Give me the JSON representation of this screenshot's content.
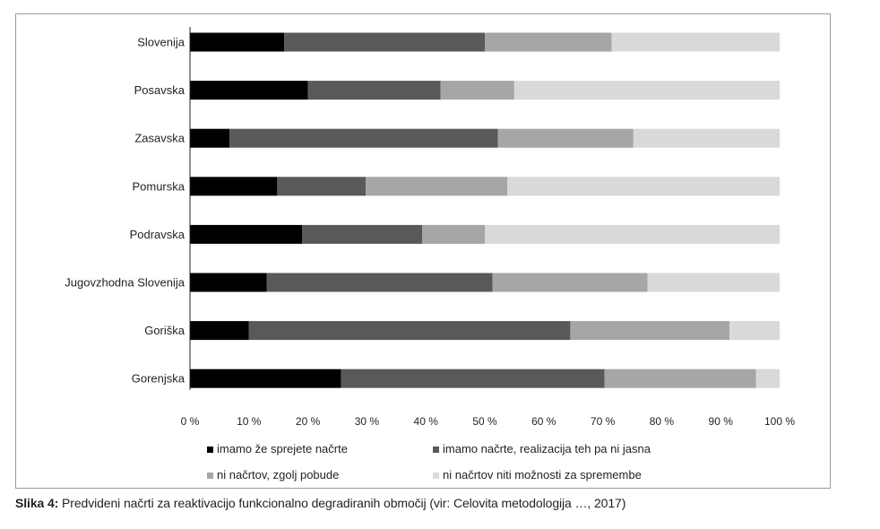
{
  "caption": {
    "label": "Slika 4:",
    "text": " Predvideni načrti za reaktivacijo funkcionalno degradiranih območij (vir: Celovita metodologija …, 2017)"
  },
  "chart_data": {
    "type": "bar",
    "orientation": "horizontal",
    "stacked": "percent",
    "categories": [
      "Slovenija",
      "Posavska",
      "Zasavska",
      "Pomurska",
      "Podravska",
      "Jugovzhodna Slovenija",
      "Goriška",
      "Gorenjska"
    ],
    "series": [
      {
        "name": "imamo že sprejete načrte",
        "color": "#000000",
        "values": [
          16,
          20,
          6.7,
          14.8,
          19,
          13,
          10,
          25.6
        ]
      },
      {
        "name": "imamo načrte, realizacija teh pa ni jasna",
        "color": "#595959",
        "values": [
          34,
          22.5,
          45.5,
          15,
          20.4,
          38.3,
          54.5,
          44.7
        ]
      },
      {
        "name": "ni načrtov, zgolj pobude",
        "color": "#a6a6a6",
        "values": [
          21.5,
          12.5,
          23,
          24,
          10.6,
          26.3,
          27,
          25.7
        ]
      },
      {
        "name": "ni načrtov niti možnosti za spremembe",
        "color": "#d9d9d9",
        "values": [
          28.5,
          45,
          24.8,
          46.2,
          50,
          22.4,
          8.5,
          4
        ]
      }
    ],
    "xlim": [
      0,
      100
    ],
    "x_ticks": [
      "0 %",
      "10 %",
      "20 %",
      "30 %",
      "40 %",
      "50 %",
      "60 %",
      "70 %",
      "80 %",
      "90 %",
      "100 %"
    ],
    "grid": false,
    "legend_position": "bottom"
  }
}
